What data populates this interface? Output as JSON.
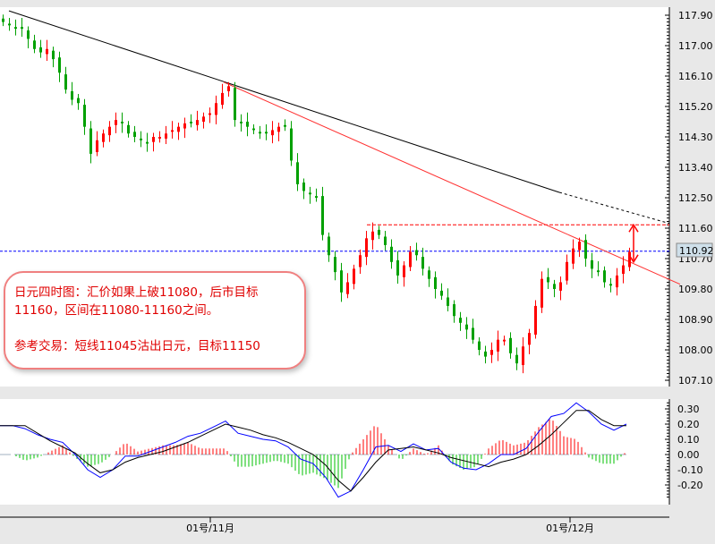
{
  "chart_data": [
    {
      "type": "candlestick",
      "title": "",
      "price_axis": {
        "ylim": [
          107.1,
          117.9
        ],
        "tick_labels": [
          "117.90",
          "117.00",
          "116.10",
          "115.20",
          "114.30",
          "113.40",
          "112.50",
          "111.60",
          "110.70",
          "109.80",
          "108.90",
          "108.00",
          "107.10"
        ]
      },
      "current_price_tag": "110.92",
      "current_price": 110.92,
      "closes": [
        117.7,
        117.6,
        117.5,
        117.5,
        117.2,
        116.9,
        116.8,
        116.9,
        116.6,
        116.2,
        115.7,
        115.4,
        115.3,
        114.6,
        113.8,
        114.2,
        114.4,
        114.6,
        114.8,
        114.7,
        114.4,
        114.3,
        114.2,
        114.1,
        114.3,
        114.3,
        114.4,
        114.5,
        114.6,
        114.7,
        114.7,
        114.8,
        114.9,
        115.0,
        115.3,
        115.6,
        115.8,
        114.8,
        114.7,
        114.6,
        114.5,
        114.4,
        114.4,
        114.5,
        114.6,
        114.6,
        113.6,
        112.9,
        112.7,
        112.6,
        112.5,
        111.4,
        110.8,
        110.3,
        109.7,
        110.0,
        110.4,
        110.8,
        111.3,
        111.5,
        111.4,
        111.1,
        110.6,
        110.2,
        110.5,
        110.9,
        110.8,
        110.4,
        110.1,
        109.8,
        109.6,
        109.3,
        109.0,
        108.8,
        108.6,
        108.3,
        108.0,
        107.8,
        108.0,
        108.3,
        108.3,
        107.9,
        107.6,
        108.1,
        108.5,
        109.3,
        110.1,
        110.0,
        109.8,
        110.0,
        110.6,
        111.0,
        111.2,
        110.7,
        110.4,
        110.3,
        110.0,
        109.9,
        110.2,
        110.5,
        110.9
      ],
      "colors": {
        "up": "#ff0000",
        "down": "#00a000"
      },
      "lines": {
        "black_trendline": {
          "from": 118.03,
          "to": 112.66,
          "dashed_extension_to": 111.74,
          "color": "#000000"
        },
        "red_trendline": {
          "from": 115.92,
          "to": 110.1,
          "color": "#ff3030"
        },
        "resistance": {
          "value": 111.7,
          "color": "#ff0000",
          "style": "dashed"
        },
        "price_line": {
          "value": 110.92,
          "color": "#0000ff",
          "style": "dashed"
        }
      },
      "x_tick_labels": [
        "01号/11月",
        "01号/12月"
      ]
    },
    {
      "type": "line",
      "indicator": "MACD",
      "ylim": [
        -0.3,
        0.35
      ],
      "tick_labels": [
        "0.30",
        "0.20",
        "0.10",
        "0.00",
        "-0.10",
        "-0.20"
      ],
      "series": [
        {
          "values": [
            0.19,
            0.19,
            0.17,
            0.13,
            0.1,
            0.08,
            0.0,
            -0.1,
            -0.15,
            -0.1,
            -0.01,
            -0.01,
            0.02,
            0.05,
            0.08,
            0.12,
            0.14,
            0.18,
            0.22,
            0.14,
            0.12,
            0.1,
            0.09,
            0.05,
            -0.03,
            -0.06,
            -0.15,
            -0.28,
            -0.24,
            -0.1,
            0.05,
            0.06,
            0.02,
            0.07,
            0.03,
            0.04,
            -0.05,
            -0.09,
            -0.1,
            -0.06,
            0.0,
            0.0,
            0.04,
            0.15,
            0.25,
            0.27,
            0.34,
            0.28,
            0.2,
            0.16,
            0.2
          ],
          "color": "#0000ff"
        },
        {
          "values": [
            0.19,
            0.19,
            0.19,
            0.14,
            0.09,
            0.05,
            0.01,
            -0.06,
            -0.12,
            -0.1,
            -0.05,
            -0.02,
            0.0,
            0.02,
            0.05,
            0.08,
            0.12,
            0.16,
            0.2,
            0.18,
            0.16,
            0.13,
            0.11,
            0.08,
            0.04,
            0.0,
            -0.07,
            -0.17,
            -0.24,
            -0.15,
            -0.05,
            0.03,
            0.04,
            0.05,
            0.03,
            0.01,
            -0.02,
            -0.04,
            -0.06,
            -0.08,
            -0.05,
            -0.03,
            0.0,
            0.06,
            0.13,
            0.21,
            0.29,
            0.29,
            0.23,
            0.19,
            0.19
          ],
          "color": "#000000"
        }
      ],
      "histogram_colors": {
        "positive": "#ff0000",
        "negative": "#00c000"
      }
    }
  ],
  "annotation": {
    "line1": "日元四时图：汇价如果上破11080，后市目标",
    "line2": "11160，区间在11080-11160之间。",
    "line3": "参考交易：短线11045沽出日元，目标11150"
  }
}
